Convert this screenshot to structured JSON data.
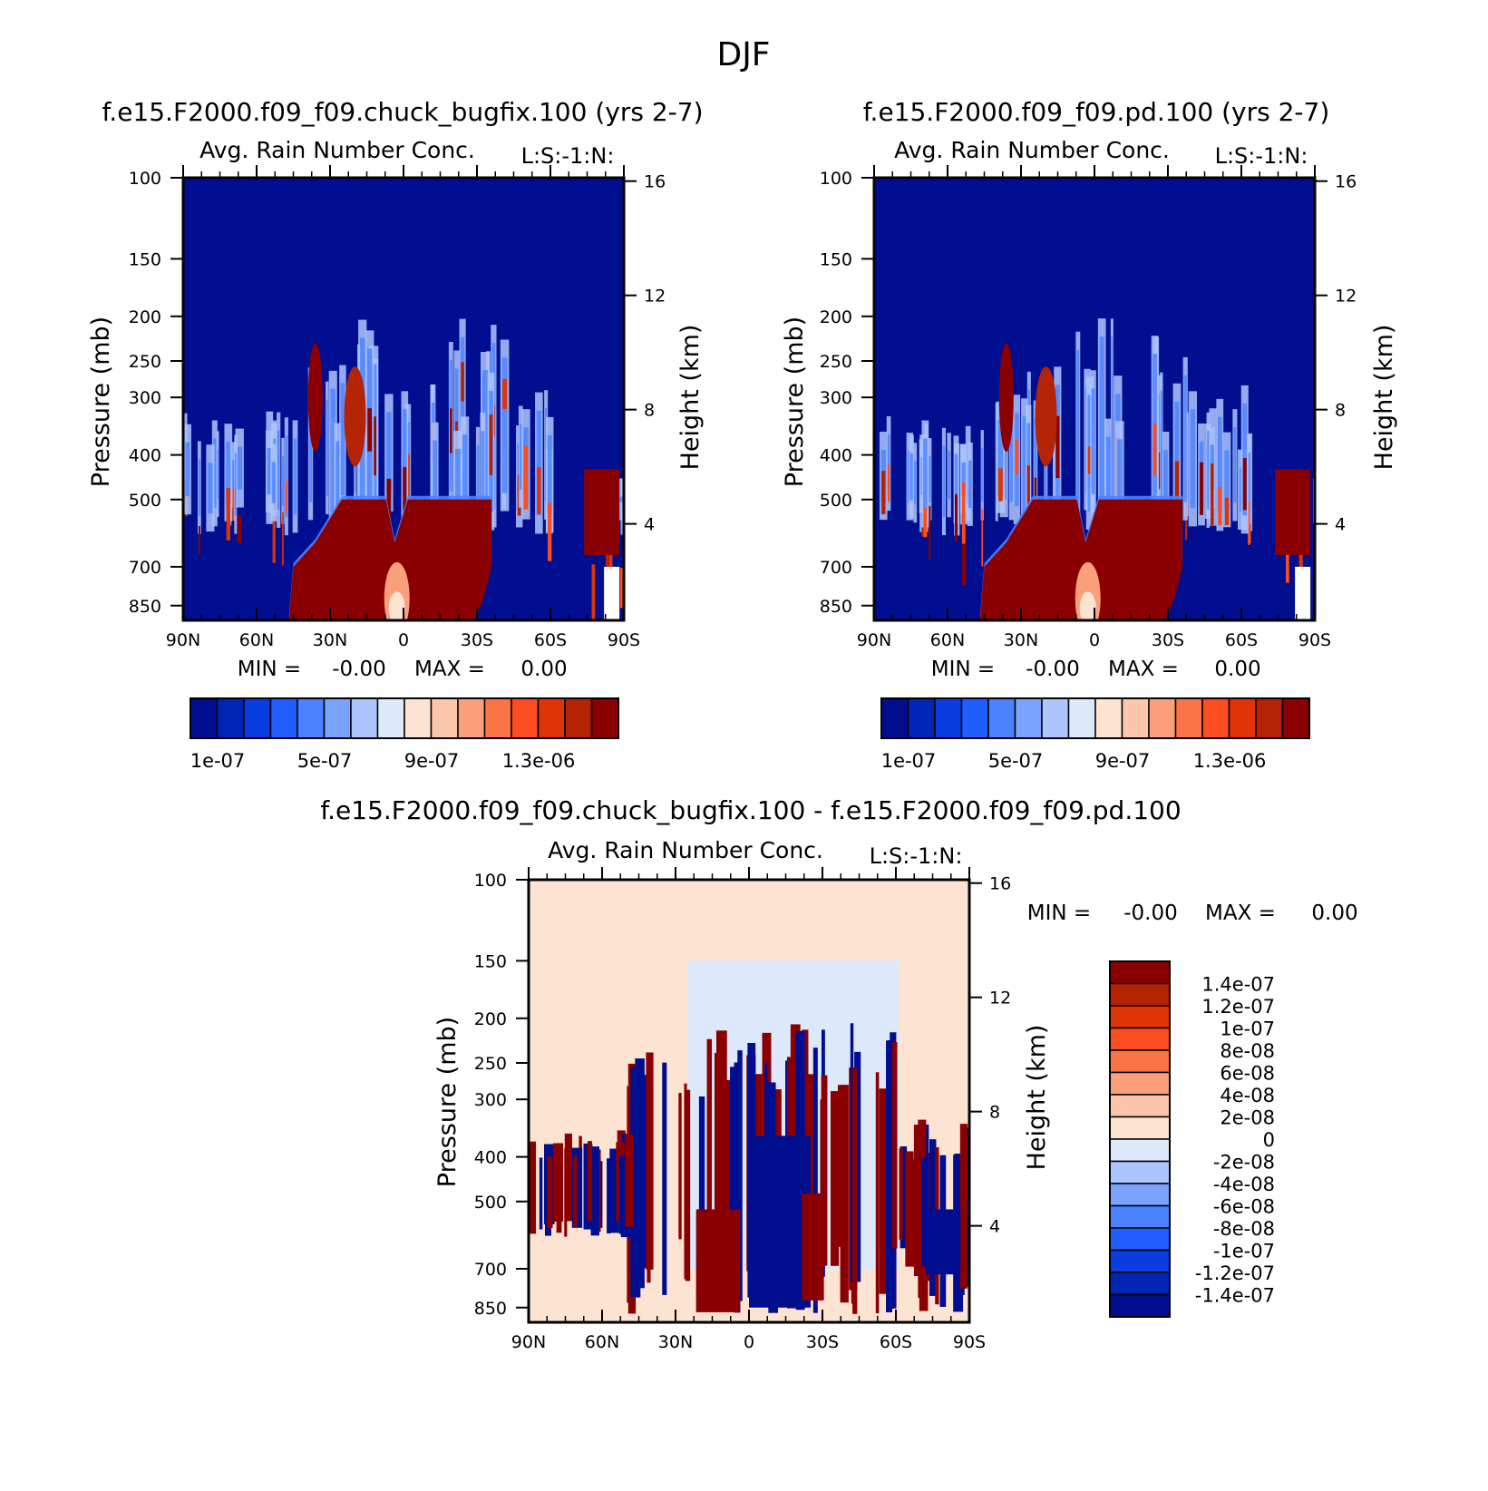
{
  "figure_title": "DJF",
  "colors": {
    "seq_levels": [
      "#000e8f",
      "#0025b5",
      "#0a3de0",
      "#1f5dff",
      "#4a82ff",
      "#7aa2ff",
      "#aec6ff",
      "#dde9fb",
      "#fde4d2",
      "#fbc6a9",
      "#f9a07b",
      "#fa7448",
      "#fb4d1f",
      "#e03404",
      "#b52305",
      "#8a0000"
    ],
    "diff_levels": [
      "#000e8f",
      "#0025b5",
      "#0a3de0",
      "#1f5dff",
      "#4a82ff",
      "#7aa2ff",
      "#aec6ff",
      "#dde9fb",
      "#fde4d2",
      "#fbc6a9",
      "#f9a07b",
      "#fa7448",
      "#fb4d1f",
      "#e03404",
      "#b52305",
      "#8a0000"
    ]
  },
  "panels": {
    "p1": {
      "title": "f.e15.F2000.f09_f09.chuck_bugfix.100 (yrs 2-7)",
      "var": "Avg. Rain Number Conc.",
      "code": "L:S:-1:N:",
      "ylabel": "Pressure (mb)",
      "y2label": "Height (km)",
      "stats": {
        "min_label": "MIN =",
        "min": "-0.00",
        "max_label": "MAX =",
        "max": "0.00"
      },
      "cb_labels": [
        "1e-07",
        "5e-07",
        "9e-07",
        "1.3e-06"
      ]
    },
    "p2": {
      "title": "f.e15.F2000.f09_f09.pd.100 (yrs 2-7)",
      "var": "Avg. Rain Number Conc.",
      "code": "L:S:-1:N:",
      "ylabel": "Pressure (mb)",
      "y2label": "Height (km)",
      "stats": {
        "min_label": "MIN =",
        "min": "-0.00",
        "max_label": "MAX =",
        "max": "0.00"
      },
      "cb_labels": [
        "1e-07",
        "5e-07",
        "9e-07",
        "1.3e-06"
      ]
    },
    "p3": {
      "title": "f.e15.F2000.f09_f09.chuck_bugfix.100 - f.e15.F2000.f09_f09.pd.100",
      "var": "Avg. Rain Number Conc.",
      "code": "L:S:-1:N:",
      "ylabel": "Pressure (mb)",
      "y2label": "Height (km)",
      "stats": {
        "min_label": "MIN =",
        "min": "-0.00",
        "max_label": "MAX =",
        "max": "0.00"
      },
      "cb_labels": [
        "1.4e-07",
        "1.2e-07",
        "1e-07",
        "8e-08",
        "6e-08",
        "4e-08",
        "2e-08",
        "0",
        "-2e-08",
        "-4e-08",
        "-6e-08",
        "-8e-08",
        "-1e-07",
        "-1.2e-07",
        "-1.4e-07"
      ]
    }
  },
  "chart_data": [
    {
      "type": "heatmap",
      "title": "f.e15.F2000.f09_f09.chuck_bugfix.100 (yrs 2-7)",
      "subtitle": "Avg. Rain Number Conc.",
      "x_ticks": [
        "90N",
        "60N",
        "30N",
        "0",
        "30S",
        "60S",
        "90S"
      ],
      "y_ticks": [
        100,
        150,
        200,
        250,
        300,
        400,
        500,
        700,
        850
      ],
      "y2_ticks": [
        16,
        12,
        8,
        4
      ],
      "xlabel": "",
      "ylabel": "Pressure (mb)",
      "y2label": "Height (km)",
      "ylim": [
        850,
        100
      ],
      "y_scale": "log",
      "colorbar_ticks": [
        "1e-07",
        "5e-07",
        "9e-07",
        "1.3e-06"
      ],
      "min": "-0.00",
      "max": "0.00"
    },
    {
      "type": "heatmap",
      "title": "f.e15.F2000.f09_f09.pd.100 (yrs 2-7)",
      "subtitle": "Avg. Rain Number Conc.",
      "x_ticks": [
        "90N",
        "60N",
        "30N",
        "0",
        "30S",
        "60S",
        "90S"
      ],
      "y_ticks": [
        100,
        150,
        200,
        250,
        300,
        400,
        500,
        700,
        850
      ],
      "y2_ticks": [
        16,
        12,
        8,
        4
      ],
      "xlabel": "",
      "ylabel": "Pressure (mb)",
      "y2label": "Height (km)",
      "ylim": [
        850,
        100
      ],
      "y_scale": "log",
      "colorbar_ticks": [
        "1e-07",
        "5e-07",
        "9e-07",
        "1.3e-06"
      ],
      "min": "-0.00",
      "max": "0.00"
    },
    {
      "type": "heatmap",
      "title": "f.e15.F2000.f09_f09.chuck_bugfix.100 - f.e15.F2000.f09_f09.pd.100",
      "subtitle": "Avg. Rain Number Conc.",
      "x_ticks": [
        "90N",
        "60N",
        "30N",
        "0",
        "30S",
        "60S",
        "90S"
      ],
      "y_ticks": [
        100,
        150,
        200,
        250,
        300,
        400,
        500,
        700,
        850
      ],
      "y2_ticks": [
        16,
        12,
        8,
        4
      ],
      "xlabel": "",
      "ylabel": "Pressure (mb)",
      "y2label": "Height (km)",
      "ylim": [
        850,
        100
      ],
      "y_scale": "log",
      "colorbar_ticks": [
        "1.4e-07",
        "1.2e-07",
        "1e-07",
        "8e-08",
        "6e-08",
        "4e-08",
        "2e-08",
        "0",
        "-2e-08",
        "-4e-08",
        "-6e-08",
        "-8e-08",
        "-1e-07",
        "-1.2e-07",
        "-1.4e-07"
      ],
      "min": "-0.00",
      "max": "0.00"
    }
  ]
}
